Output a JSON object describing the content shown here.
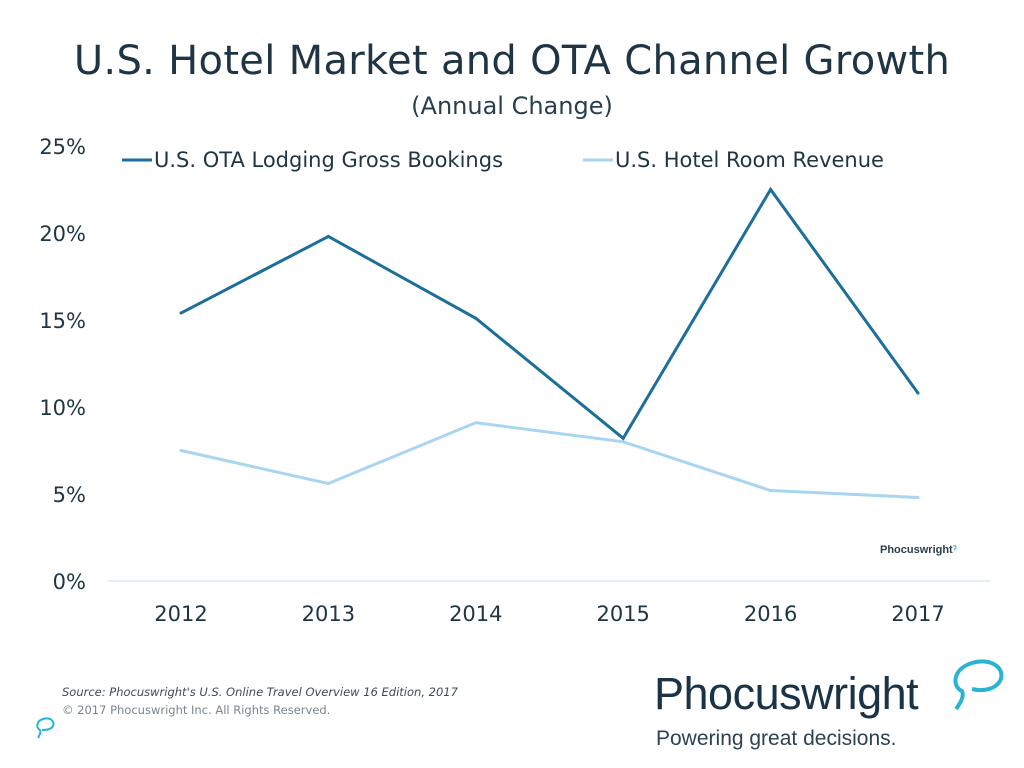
{
  "chart_data": {
    "type": "line",
    "title": "U.S. Hotel Market and OTA Channel Growth",
    "subtitle": "(Annual Change)",
    "xlabel": "",
    "ylabel": "",
    "categories": [
      "2012",
      "2013",
      "2014",
      "2015",
      "2016",
      "2017"
    ],
    "ylim": [
      0,
      25
    ],
    "yticks": [
      "0%",
      "5%",
      "10%",
      "15%",
      "20%",
      "25%"
    ],
    "grid": false,
    "legend": "top",
    "series": [
      {
        "name": "U.S. OTA Lodging Gross Bookings",
        "color": "#1b6f9a",
        "values": [
          15.4,
          19.8,
          15.1,
          8.2,
          22.5,
          10.8
        ]
      },
      {
        "name": "U.S. Hotel Room Revenue",
        "color": "#a9d5f2",
        "values": [
          7.5,
          5.6,
          9.1,
          8.0,
          5.2,
          4.8
        ]
      }
    ]
  },
  "footer": {
    "source": "Source: Phocuswright's  U.S. Online Travel Overview 16 Edition,  2017",
    "copyright": "© 2017 Phocuswright Inc. All Rights Reserved."
  },
  "brand": {
    "logo": "Phocuswright",
    "tagline": "Powering great decisions.",
    "watermark": "Phocuswright",
    "accent": "#2bb3d6"
  }
}
